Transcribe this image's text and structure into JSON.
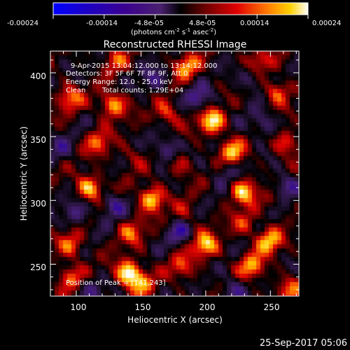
{
  "chart_data": {
    "type": "heatmap",
    "title": "Reconstructed RHESSI Image",
    "xlabel": "Heliocentric X (arcsec)",
    "ylabel": "Heliocentric Y (arcsec)",
    "xlim": [
      80,
      272
    ],
    "ylim": [
      225,
      417
    ],
    "x_ticks": [
      100,
      150,
      200,
      250
    ],
    "y_ticks": [
      250,
      300,
      350,
      400
    ],
    "colorbar": {
      "ticks": [
        "-0.00024",
        "-0.00014",
        "-4.8e-05",
        "4.8e-05",
        "0.00014",
        "0.00024"
      ],
      "label_main": "(photons cm",
      "label_exp1": "-2",
      "label_mid1": " s",
      "label_exp2": "-1",
      "label_mid2": " asec",
      "label_exp3": "-2",
      "label_end": ")",
      "range": [
        -0.00024,
        0.00024
      ]
    },
    "annotations": {
      "time": "9-Apr-2015 13:04:12.000 to 13:14:12.000",
      "detectors": "Detectors: 3F 5F 6F 7F 8F 9F, Att 0",
      "energy": "Energy Range: 12.0 - 25.0 keV",
      "method": "Clean",
      "counts": "Total counts: 1.29E+04",
      "peak": "Position of Peak = [141,243]"
    },
    "peaks": [
      {
        "x": 140,
        "y": 243,
        "v": 1.0
      },
      {
        "x": 205,
        "y": 362,
        "v": 0.95
      },
      {
        "x": 158,
        "y": 301,
        "v": 0.9
      },
      {
        "x": 110,
        "y": 310,
        "v": 0.85
      },
      {
        "x": 200,
        "y": 265,
        "v": 0.85
      },
      {
        "x": 128,
        "y": 375,
        "v": 0.8
      },
      {
        "x": 229,
        "y": 307,
        "v": 0.85
      },
      {
        "x": 249,
        "y": 268,
        "v": 0.8
      },
      {
        "x": 185,
        "y": 405,
        "v": 0.7
      },
      {
        "x": 95,
        "y": 380,
        "v": 0.6
      },
      {
        "x": 255,
        "y": 385,
        "v": 0.6
      },
      {
        "x": 220,
        "y": 338,
        "v": 0.75
      },
      {
        "x": 236,
        "y": 248,
        "v": 0.7
      },
      {
        "x": 96,
        "y": 265,
        "v": 0.6
      },
      {
        "x": 117,
        "y": 345,
        "v": 0.55
      },
      {
        "x": 170,
        "y": 368,
        "v": 0.55
      },
      {
        "x": 262,
        "y": 345,
        "v": 0.55
      },
      {
        "x": 182,
        "y": 248,
        "v": 0.5
      },
      {
        "x": 142,
        "y": 275,
        "v": 0.55
      },
      {
        "x": 230,
        "y": 282,
        "v": 0.45
      },
      {
        "x": 150,
        "y": 235,
        "v": 0.6
      },
      {
        "x": 95,
        "y": 240,
        "v": 0.55
      },
      {
        "x": 265,
        "y": 230,
        "v": 0.5
      },
      {
        "x": 180,
        "y": 328,
        "v": 0.4
      },
      {
        "x": 240,
        "y": 410,
        "v": 0.5
      },
      {
        "x": 130,
        "y": 410,
        "v": 0.45
      },
      {
        "x": 255,
        "y": 302,
        "v": 0.3
      },
      {
        "x": 185,
        "y": 290,
        "v": 0.3
      },
      {
        "x": 143,
        "y": 335,
        "v": 0.25
      },
      {
        "x": 100,
        "y": 290,
        "v": -0.45
      },
      {
        "x": 170,
        "y": 340,
        "v": -0.55
      },
      {
        "x": 195,
        "y": 380,
        "v": -0.5
      },
      {
        "x": 260,
        "y": 310,
        "v": -0.6
      },
      {
        "x": 180,
        "y": 275,
        "v": -0.45
      },
      {
        "x": 220,
        "y": 230,
        "v": -0.4
      },
      {
        "x": 245,
        "y": 360,
        "v": -0.45
      },
      {
        "x": 112,
        "y": 230,
        "v": -0.35
      },
      {
        "x": 235,
        "y": 395,
        "v": -0.35
      },
      {
        "x": 160,
        "y": 395,
        "v": -0.4
      },
      {
        "x": 128,
        "y": 296,
        "v": -0.5
      },
      {
        "x": 215,
        "y": 322,
        "v": -0.35
      },
      {
        "x": 88,
        "y": 340,
        "v": -0.3
      }
    ]
  },
  "footer": {
    "timestamp": "25-Sep-2017 05:06"
  }
}
